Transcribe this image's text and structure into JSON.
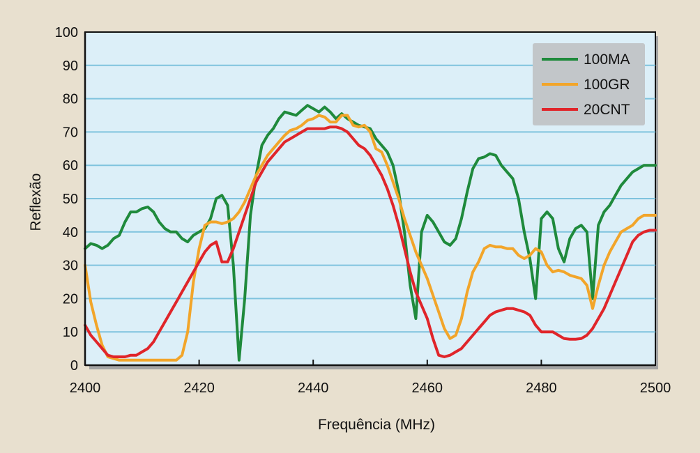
{
  "chart_data": {
    "type": "line",
    "title": "",
    "xlabel": "Frequência (MHz)",
    "ylabel": "Reflexão",
    "xlim": [
      2400,
      2500
    ],
    "ylim": [
      0,
      100
    ],
    "xticks": [
      "2400",
      "2420",
      "2440",
      "2460",
      "2480",
      "2500"
    ],
    "yticks": [
      "0",
      "10",
      "20",
      "30",
      "40",
      "50",
      "60",
      "70",
      "80",
      "90",
      "100"
    ],
    "grid": "horizontal",
    "legend_position": "top-right",
    "series": [
      {
        "name": "100MA",
        "color": "#1f8a3c",
        "x": [
          2400,
          2401,
          2402,
          2403,
          2404,
          2405,
          2406,
          2407,
          2408,
          2409,
          2410,
          2411,
          2412,
          2413,
          2414,
          2415,
          2416,
          2417,
          2418,
          2419,
          2420,
          2421,
          2422,
          2423,
          2424,
          2425,
          2426,
          2427,
          2428,
          2429,
          2430,
          2431,
          2432,
          2433,
          2434,
          2435,
          2436,
          2437,
          2438,
          2439,
          2440,
          2441,
          2442,
          2443,
          2444,
          2445,
          2446,
          2447,
          2448,
          2449,
          2450,
          2451,
          2452,
          2453,
          2454,
          2455,
          2456,
          2457,
          2458,
          2459,
          2460,
          2461,
          2462,
          2463,
          2464,
          2465,
          2466,
          2467,
          2468,
          2469,
          2470,
          2471,
          2472,
          2473,
          2474,
          2475,
          2476,
          2477,
          2478,
          2479,
          2480,
          2481,
          2482,
          2483,
          2484,
          2485,
          2486,
          2487,
          2488,
          2489,
          2490,
          2491,
          2492,
          2493,
          2494,
          2495,
          2496,
          2497,
          2498,
          2499,
          2500
        ],
        "y": [
          35,
          36.5,
          36,
          35,
          36,
          38,
          39,
          43,
          46,
          46,
          47,
          47.5,
          46,
          43,
          41,
          40,
          40,
          38,
          37,
          39,
          40,
          41,
          44,
          50,
          51,
          48,
          30,
          1.5,
          20,
          45,
          57,
          66,
          69,
          71,
          74,
          76,
          75.5,
          75,
          76.5,
          78,
          77,
          76,
          77.5,
          76,
          74,
          75.5,
          74,
          73,
          72,
          71.5,
          71,
          68,
          66,
          64,
          60,
          52,
          40,
          24,
          14,
          40,
          45,
          43,
          40,
          37,
          36,
          38,
          44,
          52,
          59,
          62,
          62.5,
          63.5,
          63,
          60,
          58,
          56,
          50,
          40,
          32,
          20,
          44,
          46,
          44,
          35,
          31,
          38,
          41,
          42,
          40,
          20,
          42,
          46,
          48,
          51,
          54,
          56,
          58,
          59,
          60,
          60,
          60
        ]
      },
      {
        "name": "100GR",
        "color": "#f2a52a",
        "x": [
          2400,
          2401,
          2402,
          2403,
          2404,
          2405,
          2406,
          2407,
          2408,
          2409,
          2410,
          2411,
          2412,
          2413,
          2414,
          2415,
          2416,
          2417,
          2418,
          2419,
          2420,
          2421,
          2422,
          2423,
          2424,
          2425,
          2426,
          2427,
          2428,
          2429,
          2430,
          2431,
          2432,
          2433,
          2434,
          2435,
          2436,
          2437,
          2438,
          2439,
          2440,
          2441,
          2442,
          2443,
          2444,
          2445,
          2446,
          2447,
          2448,
          2449,
          2450,
          2451,
          2452,
          2453,
          2454,
          2455,
          2456,
          2457,
          2458,
          2459,
          2460,
          2461,
          2462,
          2463,
          2464,
          2465,
          2466,
          2467,
          2468,
          2469,
          2470,
          2471,
          2472,
          2473,
          2474,
          2475,
          2476,
          2477,
          2478,
          2479,
          2480,
          2481,
          2482,
          2483,
          2484,
          2485,
          2486,
          2487,
          2488,
          2489,
          2490,
          2491,
          2492,
          2493,
          2494,
          2495,
          2496,
          2497,
          2498,
          2499,
          2500
        ],
        "y": [
          30,
          19,
          12,
          6,
          2.5,
          2,
          1.5,
          1.5,
          1.5,
          1.5,
          1.5,
          1.5,
          1.5,
          1.5,
          1.5,
          1.5,
          1.5,
          3,
          10,
          25,
          35,
          42,
          43,
          43,
          42.5,
          43,
          44,
          46,
          49,
          53,
          57,
          60,
          63,
          65,
          67,
          69,
          70.5,
          71,
          72,
          73.5,
          74,
          75,
          74.5,
          73,
          73,
          75,
          75,
          72,
          71.5,
          72,
          70,
          65,
          64,
          60,
          55,
          50,
          44,
          39,
          34,
          30,
          26,
          21,
          16,
          11,
          8,
          9,
          14,
          22,
          28,
          31,
          35,
          36,
          35.5,
          35.5,
          35,
          35,
          33,
          32,
          33,
          35,
          34,
          30,
          28,
          28.5,
          28,
          27,
          26.5,
          26,
          24,
          17,
          24,
          30,
          34,
          37,
          40,
          41,
          42,
          44,
          45,
          45,
          45
        ]
      },
      {
        "name": "20CNT",
        "color": "#e0252a",
        "x": [
          2400,
          2401,
          2402,
          2403,
          2404,
          2405,
          2406,
          2407,
          2408,
          2409,
          2410,
          2411,
          2412,
          2413,
          2414,
          2415,
          2416,
          2417,
          2418,
          2419,
          2420,
          2421,
          2422,
          2423,
          2424,
          2425,
          2426,
          2427,
          2428,
          2429,
          2430,
          2431,
          2432,
          2433,
          2434,
          2435,
          2436,
          2437,
          2438,
          2439,
          2440,
          2441,
          2442,
          2443,
          2444,
          2445,
          2446,
          2447,
          2448,
          2449,
          2450,
          2451,
          2452,
          2453,
          2454,
          2455,
          2456,
          2457,
          2458,
          2459,
          2460,
          2461,
          2462,
          2463,
          2464,
          2465,
          2466,
          2467,
          2468,
          2469,
          2470,
          2471,
          2472,
          2473,
          2474,
          2475,
          2476,
          2477,
          2478,
          2479,
          2480,
          2481,
          2482,
          2483,
          2484,
          2485,
          2486,
          2487,
          2488,
          2489,
          2490,
          2491,
          2492,
          2493,
          2494,
          2495,
          2496,
          2497,
          2498,
          2499,
          2500
        ],
        "y": [
          12,
          9,
          7,
          5,
          3,
          2.5,
          2.5,
          2.5,
          3,
          3,
          4,
          5,
          7,
          10,
          13,
          16,
          19,
          22,
          25,
          28,
          31,
          34,
          36,
          37,
          31,
          31,
          35,
          40,
          45,
          50,
          55,
          58,
          61,
          63,
          65,
          67,
          68,
          69,
          70,
          71,
          71,
          71,
          71,
          71.5,
          71.5,
          71,
          70,
          68,
          66,
          65,
          63,
          60,
          57,
          53,
          48,
          42,
          35,
          28,
          22,
          18,
          14,
          8,
          3,
          2.5,
          3,
          4,
          5,
          7,
          9,
          11,
          13,
          15,
          16,
          16.5,
          17,
          17,
          16.5,
          16,
          15,
          12,
          10,
          10,
          10,
          9,
          8,
          7.8,
          7.8,
          8,
          9,
          11,
          14,
          17,
          21,
          25,
          29,
          33,
          37,
          39,
          40,
          40.5,
          40.5
        ]
      }
    ]
  }
}
